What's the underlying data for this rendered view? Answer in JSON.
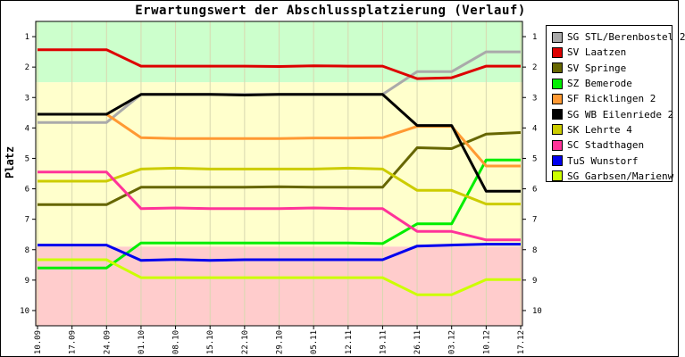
{
  "chart_data": {
    "type": "line",
    "title": "Erwartungswert der Abschlussplatzierung (Verlauf)",
    "ylabel": "Platz",
    "xlabel": "",
    "x": [
      "10.09",
      "17.09",
      "24.09",
      "01.10",
      "08.10",
      "15.10",
      "22.10",
      "29.10",
      "05.11",
      "12.11",
      "19.11",
      "26.11",
      "03.12",
      "10.12",
      "17.12"
    ],
    "ylim": [
      10.5,
      0.5
    ],
    "yticks": [
      1,
      2,
      3,
      4,
      5,
      6,
      7,
      8,
      9,
      10
    ],
    "yscale_inverted": true,
    "bands": [
      {
        "from": 0.5,
        "to": 2.5,
        "color": "#ccffcc"
      },
      {
        "from": 2.5,
        "to": 7.9,
        "color": "#ffffcc"
      },
      {
        "from": 7.9,
        "to": 10.5,
        "color": "#ffcccc"
      }
    ],
    "legend_position": "right",
    "series": [
      {
        "name": "SG STL/Berenbostel 2",
        "color": "#aaaaaa",
        "values": [
          3.82,
          3.82,
          3.82,
          2.9,
          2.9,
          2.9,
          2.9,
          2.9,
          2.9,
          2.9,
          2.9,
          2.15,
          2.15,
          1.5,
          1.5
        ]
      },
      {
        "name": "SV Laatzen",
        "color": "#dd0000",
        "values": [
          1.43,
          1.43,
          1.43,
          1.97,
          1.97,
          1.97,
          1.97,
          1.98,
          1.96,
          1.97,
          1.97,
          2.38,
          2.35,
          1.97,
          1.97
        ]
      },
      {
        "name": "SV Springe",
        "color": "#666600",
        "values": [
          6.52,
          6.52,
          6.52,
          5.95,
          5.95,
          5.95,
          5.95,
          5.93,
          5.95,
          5.95,
          5.95,
          4.65,
          4.68,
          4.2,
          4.15
        ]
      },
      {
        "name": "SZ Bemerode",
        "color": "#00ee00",
        "values": [
          8.6,
          8.6,
          8.6,
          7.78,
          7.78,
          7.78,
          7.78,
          7.78,
          7.78,
          7.78,
          7.8,
          7.15,
          7.15,
          5.05,
          5.05
        ]
      },
      {
        "name": "SF Ricklingen 2",
        "color": "#ff9933",
        "values": [
          3.55,
          3.55,
          3.55,
          4.32,
          4.35,
          4.35,
          4.35,
          4.35,
          4.33,
          4.33,
          4.32,
          3.95,
          3.95,
          5.25,
          5.25
        ]
      },
      {
        "name": "SG WB Eilenriede 2",
        "color": "#000000",
        "values": [
          3.55,
          3.55,
          3.55,
          2.9,
          2.9,
          2.9,
          2.92,
          2.9,
          2.9,
          2.9,
          2.9,
          3.92,
          3.92,
          6.08,
          6.08
        ]
      },
      {
        "name": "SK Lehrte 4",
        "color": "#cccc00",
        "values": [
          5.75,
          5.75,
          5.75,
          5.35,
          5.32,
          5.35,
          5.35,
          5.35,
          5.35,
          5.32,
          5.35,
          6.05,
          6.05,
          6.5,
          6.5
        ]
      },
      {
        "name": "SC Stadthagen",
        "color": "#ff3399",
        "values": [
          5.45,
          5.45,
          5.45,
          6.65,
          6.63,
          6.65,
          6.65,
          6.65,
          6.63,
          6.65,
          6.65,
          7.4,
          7.4,
          7.68,
          7.68
        ]
      },
      {
        "name": "TuS Wunstorf",
        "color": "#0000ee",
        "values": [
          7.85,
          7.85,
          7.85,
          8.35,
          8.32,
          8.35,
          8.33,
          8.33,
          8.33,
          8.33,
          8.33,
          7.88,
          7.85,
          7.82,
          7.82
        ]
      },
      {
        "name": "SG Garbsen/Marienw",
        "color": "#ccff00",
        "values": [
          8.33,
          8.33,
          8.33,
          8.92,
          8.92,
          8.92,
          8.92,
          8.92,
          8.92,
          8.92,
          8.92,
          9.48,
          9.48,
          8.98,
          8.98
        ]
      }
    ]
  }
}
